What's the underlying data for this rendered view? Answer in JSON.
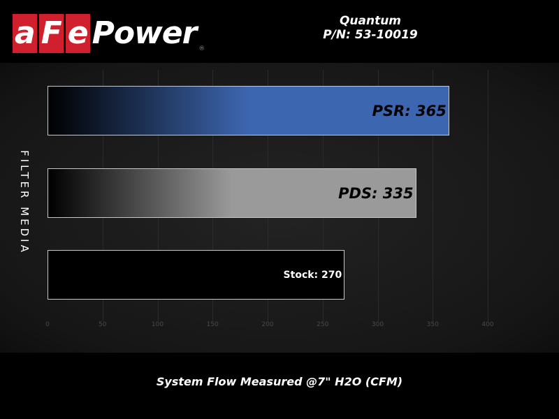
{
  "header": {
    "logo_text": "aFePower",
    "title_line1": "Quantum",
    "title_line2": "P/N: 53-10019"
  },
  "chart_data": {
    "type": "bar",
    "orientation": "horizontal",
    "categories": [
      "PSR",
      "PDS",
      "Stock"
    ],
    "values": [
      365,
      335,
      270
    ],
    "data_labels": [
      "PSR: 365",
      "PDS: 335",
      "Stock: 270"
    ],
    "colors": [
      "#3d66b0",
      "#9a9a9a",
      "#000000"
    ],
    "xlabel": "System Flow Measured @7\" H2O (CFM)",
    "ylabel": "FILTER MEDIA",
    "xlim": [
      0,
      400
    ],
    "xticks": [
      "0",
      "50",
      "100",
      "150",
      "200",
      "250",
      "300",
      "350",
      "400"
    ],
    "grid": true
  }
}
